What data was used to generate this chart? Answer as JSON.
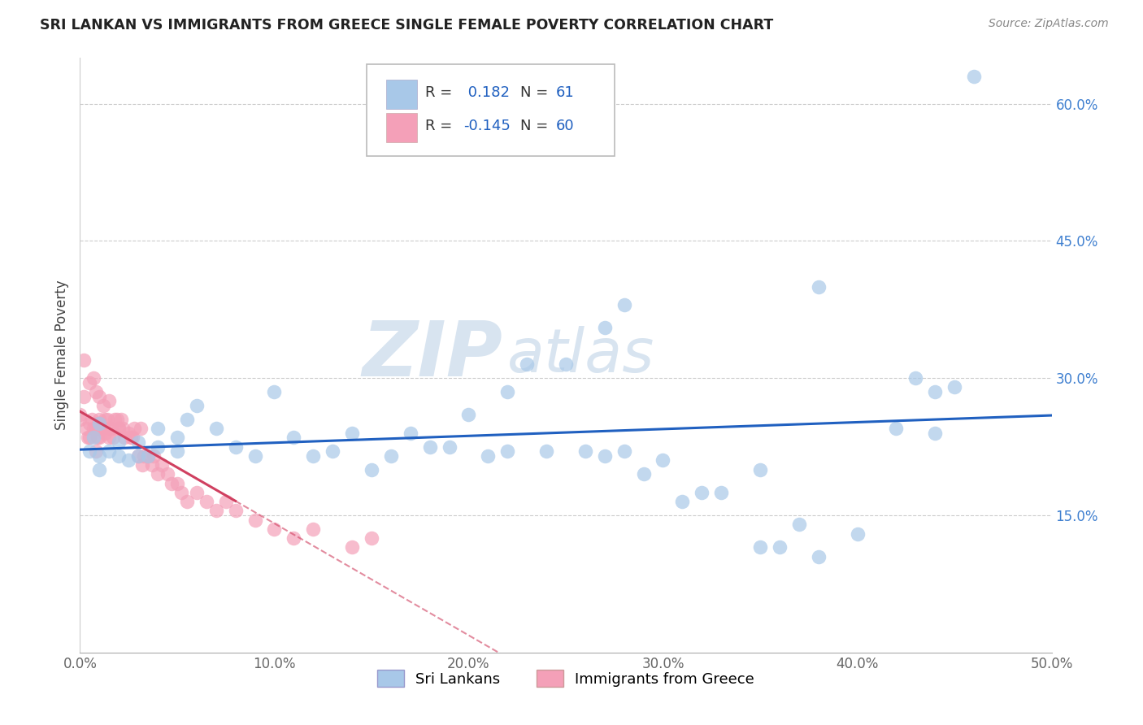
{
  "title": "SRI LANKAN VS IMMIGRANTS FROM GREECE SINGLE FEMALE POVERTY CORRELATION CHART",
  "source": "Source: ZipAtlas.com",
  "ylabel": "Single Female Poverty",
  "xlim": [
    0.0,
    0.5
  ],
  "ylim": [
    0.0,
    0.65
  ],
  "xticks": [
    0.0,
    0.1,
    0.2,
    0.3,
    0.4,
    0.5
  ],
  "xticklabels": [
    "0.0%",
    "10.0%",
    "20.0%",
    "30.0%",
    "40.0%",
    "50.0%"
  ],
  "yticks": [
    0.15,
    0.3,
    0.45,
    0.6
  ],
  "yticklabels": [
    "15.0%",
    "30.0%",
    "45.0%",
    "60.0%"
  ],
  "R_sri": 0.182,
  "N_sri": 61,
  "R_greece": -0.145,
  "N_greece": 60,
  "color_sri": "#a8c8e8",
  "color_greece": "#f4a0b8",
  "line_color_sri": "#2060c0",
  "line_color_greece": "#d04060",
  "tick_color": "#4080d0",
  "watermark_zip": "ZIP",
  "watermark_atlas": "atlas",
  "watermark_color": "#d8e4f0",
  "background_color": "#ffffff",
  "sri_x": [
    0.005,
    0.007,
    0.01,
    0.01,
    0.01,
    0.015,
    0.02,
    0.02,
    0.025,
    0.03,
    0.03,
    0.035,
    0.04,
    0.04,
    0.05,
    0.05,
    0.055,
    0.06,
    0.07,
    0.08,
    0.09,
    0.1,
    0.11,
    0.12,
    0.13,
    0.14,
    0.15,
    0.16,
    0.17,
    0.18,
    0.19,
    0.2,
    0.21,
    0.22,
    0.23,
    0.24,
    0.25,
    0.26,
    0.27,
    0.28,
    0.29,
    0.3,
    0.31,
    0.32,
    0.33,
    0.35,
    0.36,
    0.37,
    0.38,
    0.4,
    0.42,
    0.43,
    0.44,
    0.27,
    0.28,
    0.38,
    0.22,
    0.35,
    0.44,
    0.45,
    0.46
  ],
  "sri_y": [
    0.22,
    0.235,
    0.25,
    0.215,
    0.2,
    0.22,
    0.23,
    0.215,
    0.21,
    0.23,
    0.215,
    0.215,
    0.245,
    0.225,
    0.235,
    0.22,
    0.255,
    0.27,
    0.245,
    0.225,
    0.215,
    0.285,
    0.235,
    0.215,
    0.22,
    0.24,
    0.2,
    0.215,
    0.24,
    0.225,
    0.225,
    0.26,
    0.215,
    0.22,
    0.315,
    0.22,
    0.315,
    0.22,
    0.215,
    0.22,
    0.195,
    0.21,
    0.165,
    0.175,
    0.175,
    0.2,
    0.115,
    0.14,
    0.105,
    0.13,
    0.245,
    0.3,
    0.24,
    0.355,
    0.38,
    0.4,
    0.285,
    0.115,
    0.285,
    0.29,
    0.63
  ],
  "greece_x": [
    0.0,
    0.0,
    0.002,
    0.003,
    0.004,
    0.005,
    0.005,
    0.006,
    0.007,
    0.008,
    0.008,
    0.009,
    0.01,
    0.01,
    0.01,
    0.01,
    0.012,
    0.013,
    0.013,
    0.014,
    0.015,
    0.015,
    0.016,
    0.017,
    0.018,
    0.019,
    0.02,
    0.02,
    0.021,
    0.022,
    0.023,
    0.025,
    0.026,
    0.027,
    0.028,
    0.03,
    0.031,
    0.032,
    0.033,
    0.035,
    0.037,
    0.038,
    0.04,
    0.042,
    0.045,
    0.047,
    0.05,
    0.052,
    0.055,
    0.06,
    0.065,
    0.07,
    0.075,
    0.08,
    0.09,
    0.1,
    0.11,
    0.12,
    0.14,
    0.15
  ],
  "greece_y": [
    0.26,
    0.255,
    0.28,
    0.245,
    0.235,
    0.25,
    0.235,
    0.255,
    0.245,
    0.22,
    0.245,
    0.235,
    0.25,
    0.255,
    0.245,
    0.235,
    0.245,
    0.255,
    0.24,
    0.255,
    0.235,
    0.245,
    0.245,
    0.235,
    0.255,
    0.255,
    0.245,
    0.245,
    0.255,
    0.245,
    0.235,
    0.24,
    0.235,
    0.235,
    0.245,
    0.215,
    0.245,
    0.205,
    0.215,
    0.215,
    0.205,
    0.215,
    0.195,
    0.205,
    0.195,
    0.185,
    0.185,
    0.175,
    0.165,
    0.175,
    0.165,
    0.155,
    0.165,
    0.155,
    0.145,
    0.135,
    0.125,
    0.135,
    0.115,
    0.125
  ],
  "greece_extra_x": [
    0.002,
    0.005,
    0.007,
    0.008,
    0.01,
    0.012,
    0.015
  ],
  "greece_extra_y": [
    0.32,
    0.295,
    0.3,
    0.285,
    0.28,
    0.27,
    0.275
  ]
}
